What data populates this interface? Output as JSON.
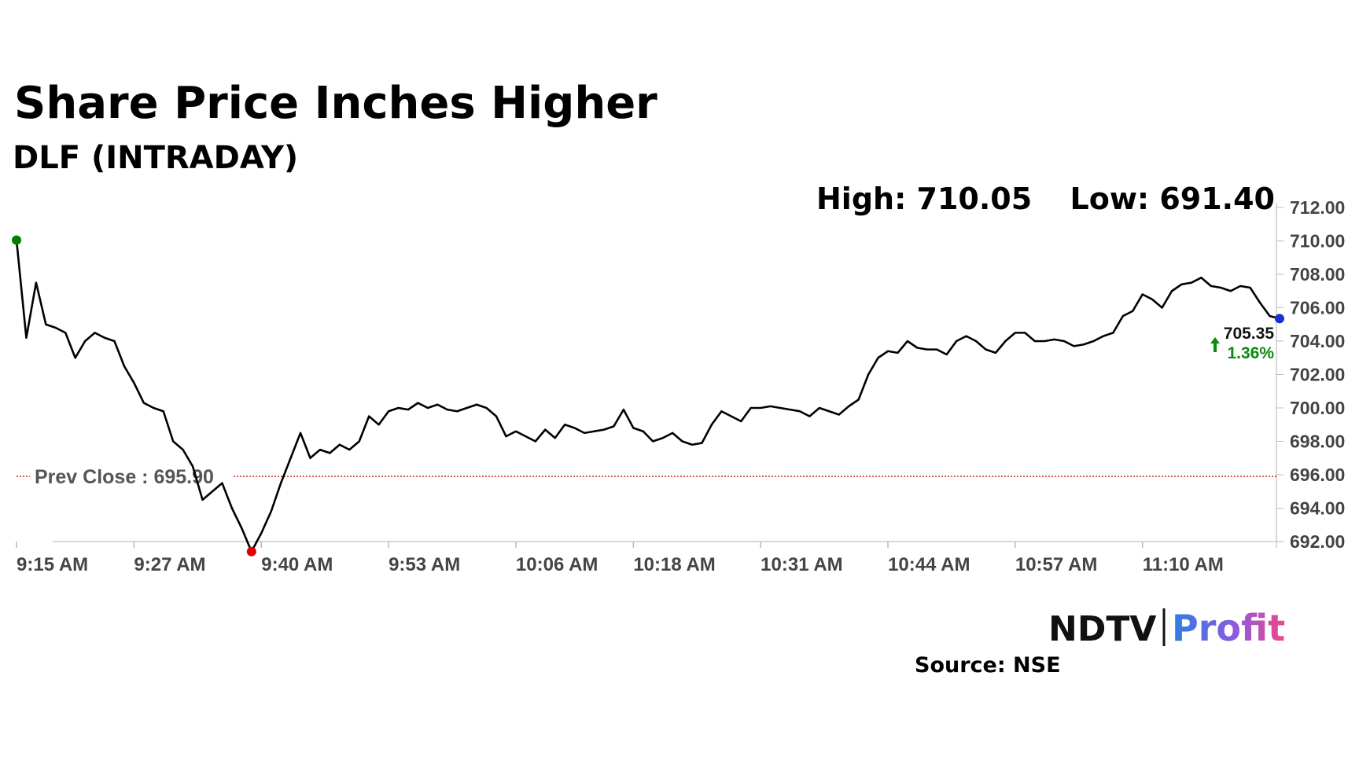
{
  "chart_data": {
    "type": "line",
    "title": "Share Price Inches Higher",
    "subtitle": "DLF (INTRADAY)",
    "high_label": "High: 710.05",
    "low_label": "Low: 691.40",
    "categories": [
      "9:15 AM",
      null,
      null,
      null,
      null,
      null,
      null,
      null,
      null,
      null,
      null,
      null,
      "9:27 AM",
      null,
      null,
      null,
      null,
      null,
      null,
      null,
      null,
      null,
      null,
      null,
      null,
      "9:40 AM",
      null,
      null,
      null,
      null,
      null,
      null,
      null,
      null,
      null,
      null,
      null,
      null,
      "9:53 AM",
      null,
      null,
      null,
      null,
      null,
      null,
      null,
      null,
      null,
      null,
      null,
      null,
      "10:06 AM",
      null,
      null,
      null,
      null,
      null,
      null,
      null,
      null,
      null,
      null,
      null,
      "10:18 AM",
      null,
      null,
      null,
      null,
      null,
      null,
      null,
      null,
      null,
      null,
      null,
      null,
      "10:31 AM",
      null,
      null,
      null,
      null,
      null,
      null,
      null,
      null,
      null,
      null,
      null,
      null,
      "10:44 AM",
      null,
      null,
      null,
      null,
      null,
      null,
      null,
      null,
      null,
      null,
      null,
      null,
      "10:57 AM",
      null,
      null,
      null,
      null,
      null,
      null,
      null,
      null,
      null,
      null,
      null,
      null,
      "11:10 AM",
      null,
      null,
      null,
      null,
      null,
      null,
      null,
      null,
      null,
      null,
      null,
      null,
      null,
      null
    ],
    "series": [
      {
        "name": "DLF",
        "color": "#000000",
        "values": [
          710.05,
          704.2,
          707.5,
          705.0,
          704.8,
          704.5,
          703.0,
          704.0,
          704.5,
          704.2,
          704.0,
          702.5,
          701.5,
          700.3,
          700.0,
          699.8,
          698.0,
          697.5,
          696.5,
          694.5,
          695.0,
          695.5,
          694.0,
          692.8,
          691.4,
          692.5,
          693.8,
          695.5,
          697.0,
          698.5,
          697.0,
          697.5,
          697.3,
          697.8,
          697.5,
          698.0,
          699.5,
          699.0,
          699.8,
          700.0,
          699.9,
          700.3,
          700.0,
          700.2,
          699.9,
          699.8,
          700.0,
          700.2,
          700.0,
          699.5,
          698.3,
          698.6,
          698.3,
          698.0,
          698.7,
          698.2,
          699.0,
          698.8,
          698.5,
          698.6,
          698.7,
          698.9,
          699.9,
          698.8,
          698.6,
          698.0,
          698.2,
          698.5,
          698.0,
          697.8,
          697.9,
          699.0,
          699.8,
          699.5,
          699.2,
          700.0,
          700.0,
          700.1,
          700.0,
          699.9,
          699.8,
          699.5,
          700.0,
          699.8,
          699.6,
          700.1,
          700.5,
          702.0,
          703.0,
          703.4,
          703.3,
          704.0,
          703.6,
          703.5,
          703.5,
          703.2,
          704.0,
          704.3,
          704.0,
          703.5,
          703.3,
          704.0,
          704.5,
          704.5,
          704.0,
          704.0,
          704.1,
          704.0,
          703.7,
          703.8,
          704.0,
          704.3,
          704.5,
          705.5,
          705.8,
          706.8,
          706.5,
          706.0,
          707.0,
          707.4,
          707.5,
          707.8,
          707.3,
          707.2,
          707.0,
          707.3,
          707.2,
          706.3,
          705.5,
          705.35
        ]
      }
    ],
    "high_color": "#008000",
    "low_color": "#e00000",
    "last_color": "#1a2fd0",
    "prev_close": 695.9,
    "prev_close_label": "Prev Close : 695.90",
    "prev_close_color": "#c00000",
    "last_label": "705.35",
    "change_label": "1.36%",
    "ylim": [
      692,
      712
    ],
    "yticks": [
      {
        "value": 692,
        "label": "692.00"
      },
      {
        "value": 694,
        "label": "694.00"
      },
      {
        "value": 696,
        "label": "696.00"
      },
      {
        "value": 698,
        "label": "698.00"
      },
      {
        "value": 700,
        "label": "700.00"
      },
      {
        "value": 702,
        "label": "702.00"
      },
      {
        "value": 704,
        "label": "704.00"
      },
      {
        "value": 706,
        "label": "706.00"
      },
      {
        "value": 708,
        "label": "708.00"
      },
      {
        "value": 710,
        "label": "710.00"
      },
      {
        "value": 712,
        "label": "712.00"
      }
    ],
    "source": "Source: NSE",
    "brand": [
      "NDTV",
      "Profit"
    ]
  }
}
